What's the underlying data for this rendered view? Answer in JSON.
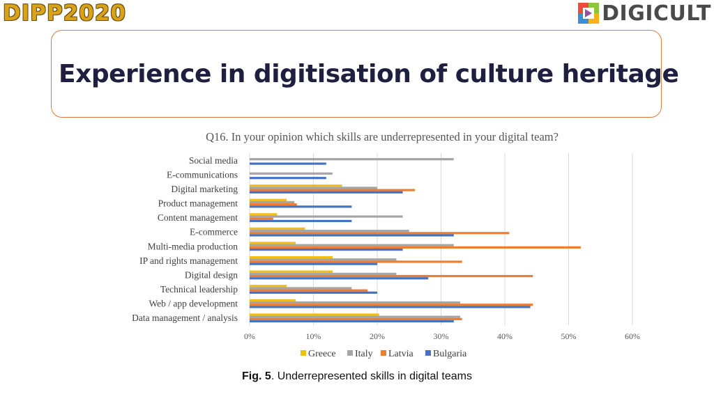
{
  "header": {
    "left_logo_text": "DIPP2020",
    "right_logo_text": "DIGICULT"
  },
  "title": "Experience in digitisation of culture heritage",
  "caption": {
    "label": "Fig. 5",
    "text": ". Underrepresented skills in digital teams"
  },
  "colors": {
    "Greece": "#f2be14",
    "Italy": "#a5a5a5",
    "Latvia": "#ed7d31",
    "Bulgaria": "#4472c4",
    "title_border": "#e07a3a"
  },
  "chart_data": {
    "type": "bar",
    "orientation": "horizontal",
    "title": "Q16. In your opinion which skills are underrepresented in your digital team?",
    "categories": [
      "Social media",
      "E-communications",
      "Digital marketing",
      "Product management",
      "Content management",
      "E-commerce",
      "Multi-media production",
      "IP and rights management",
      "Digital design",
      "Technical leadership",
      "Web / app development",
      "Data management / analysis"
    ],
    "series": [
      {
        "name": "Greece",
        "values": [
          0,
          0,
          14.5,
          5.8,
          4.3,
          8.7,
          7.2,
          13.0,
          13.0,
          5.8,
          7.2,
          20.3
        ]
      },
      {
        "name": "Italy",
        "values": [
          32.0,
          13.0,
          20.0,
          7.0,
          24.0,
          25.0,
          32.0,
          23.0,
          23.0,
          16.0,
          33.0,
          33.0
        ]
      },
      {
        "name": "Latvia",
        "values": [
          0,
          0,
          25.9,
          7.4,
          3.7,
          40.7,
          51.9,
          33.3,
          44.4,
          18.5,
          44.4,
          33.3
        ]
      },
      {
        "name": "Bulgaria",
        "values": [
          12.0,
          12.0,
          24.0,
          16.0,
          16.0,
          32.0,
          24.0,
          20.0,
          28.0,
          20.0,
          44.0,
          32.0
        ]
      }
    ],
    "xlim": [
      0,
      60
    ],
    "xticks": [
      "0%",
      "10%",
      "20%",
      "30%",
      "40%",
      "50%",
      "60%"
    ],
    "xlabel": "",
    "ylabel": "",
    "grid": "vertical",
    "legend": "bottom"
  }
}
